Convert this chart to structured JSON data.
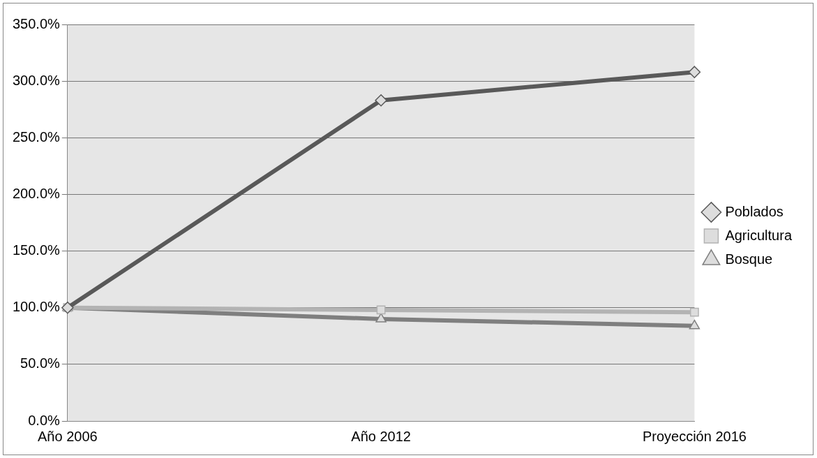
{
  "chart_data": {
    "type": "line",
    "categories": [
      "Año 2006",
      "Año 2012",
      "Proyección 2016"
    ],
    "series": [
      {
        "name": "Poblados",
        "color": "#595959",
        "marker": "diamond",
        "values": [
          100,
          283,
          308
        ]
      },
      {
        "name": "Agricultura",
        "color": "#b3b3b3",
        "marker": "square",
        "values": [
          100,
          98,
          96
        ]
      },
      {
        "name": "Bosque",
        "color": "#7f7f7f",
        "marker": "triangle",
        "values": [
          100,
          90,
          84
        ]
      }
    ],
    "ylim": [
      0,
      350
    ],
    "yticks": [
      {
        "value": 0,
        "label": "0.0%"
      },
      {
        "value": 50,
        "label": "50.0%"
      },
      {
        "value": 100,
        "label": "100.0%"
      },
      {
        "value": 150,
        "label": "150.0%"
      },
      {
        "value": 200,
        "label": "200.0%"
      },
      {
        "value": 250,
        "label": "250.0%"
      },
      {
        "value": 300,
        "label": "300.0%"
      },
      {
        "value": 350,
        "label": "350.0%"
      }
    ],
    "grid": "y",
    "legend": "right"
  }
}
